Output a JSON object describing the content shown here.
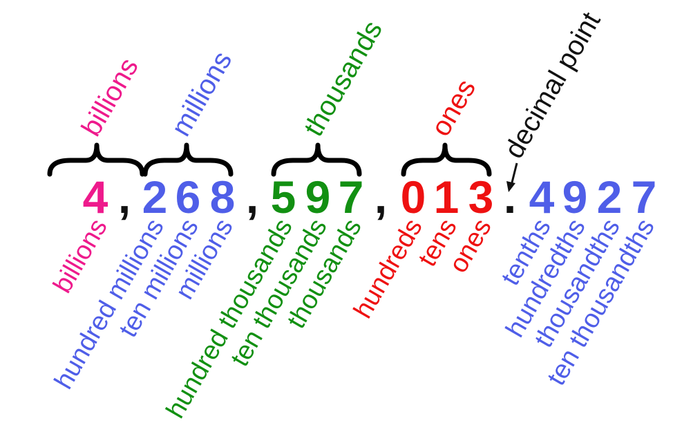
{
  "colors": {
    "billions": "#ee1a8c",
    "millions": "#4f5ee8",
    "thousands": "#129012",
    "ones": "#ee1111",
    "decimals": "#4f5ee8",
    "black": "#111111"
  },
  "digits": {
    "billions": [
      "4"
    ],
    "millions": [
      "2",
      "6",
      "8"
    ],
    "thousands": [
      "5",
      "9",
      "7"
    ],
    "ones": [
      "0",
      "1",
      "3"
    ],
    "decimals": [
      "4",
      "9",
      "2",
      "7"
    ]
  },
  "separators": {
    "comma": ",",
    "point": "."
  },
  "group_labels": {
    "billions": "billions",
    "millions": "millions",
    "thousands": "thousands",
    "ones": "ones"
  },
  "decimal_point_label": "decimal point",
  "place_labels": {
    "billions": [
      "billions"
    ],
    "millions": [
      "hundred millions",
      "ten millions",
      "millions"
    ],
    "thousands": [
      "hundred thousands",
      "ten thousands",
      "thousands"
    ],
    "ones": [
      "hundreds",
      "tens",
      "ones"
    ],
    "decimals": [
      "tenths",
      "hundredths",
      "thousandths",
      "ten thousandths"
    ]
  }
}
